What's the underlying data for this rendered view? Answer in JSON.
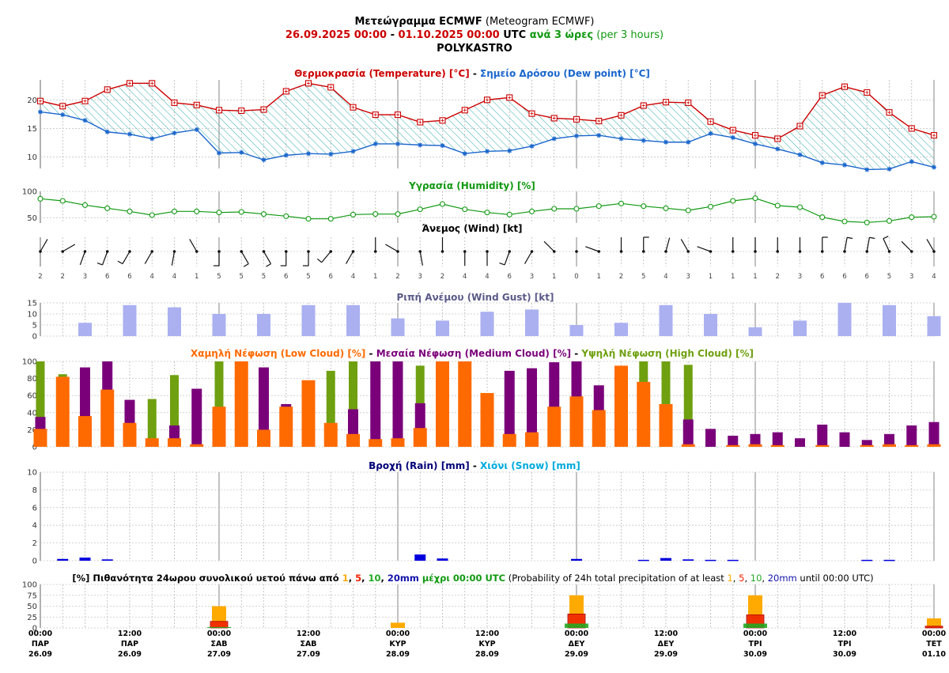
{
  "header": {
    "line1_main": "Μετεώγραμμα ECMWF",
    "line1_sub": " (Meteogram ECMWF)",
    "range_from": "26.09.2025 00:00",
    "range_dash": " - ",
    "range_to": "01.10.2025 00:00",
    "range_utc": " UTC ",
    "range_step": "ανά 3 ώρες",
    "range_step_en": " (per 3 hours)",
    "location": "POLYKASTRO"
  },
  "panel_titles": {
    "temp_a": "Θερμοκρασία (Temperature) [°C]",
    "temp_sep": " - ",
    "temp_b": "Σημείο Δρόσου (Dew point) [°C]",
    "humidity": "Υγρασία (Humidity) [%]",
    "wind": "Άνεμος (Wind) [kt]",
    "gust": "Ριπή Ανέμου (Wind Gust) [kt]",
    "cloud_low": "Χαμηλή Νέφωση (Low Cloud) [%]",
    "cloud_mid": "Μεσαία Νέφωση (Medium Cloud) [%]",
    "cloud_high": "Υψηλή Νέφωση (High Cloud) [%]",
    "cloud_sep": " - ",
    "rain": "Βροχή (Rain) [mm]",
    "rain_sep": " - ",
    "snow": "Χιόνι (Snow) [mm]",
    "prob_a": "[%] Πιθανότητα 24ωρου συνολικού υετού πάνω από ",
    "prob_1": "1",
    "prob_c1": ", ",
    "prob_5": "5",
    "prob_c2": ", ",
    "prob_10": "10",
    "prob_c3": ", ",
    "prob_20": "20mm",
    "prob_b": " μέχρι 00:00 UTC",
    "prob_en_a": " (Probability of 24h total precipitation of at least ",
    "prob_en_1": "1",
    "prob_en_c1": ", ",
    "prob_en_5": "5",
    "prob_en_c2": ", ",
    "prob_en_10": "10",
    "prob_en_c3": ", ",
    "prob_en_20": "20mm",
    "prob_en_b": " until 00:00 UTC)"
  },
  "colors": {
    "temperature": "#cc0000",
    "dew_point": "#1a66cc",
    "hatch": "#33aaaa",
    "humidity": "#119911",
    "gust": "#aab0f0",
    "low_cloud": "#ff6a00",
    "mid_cloud": "#7a007a",
    "high_cloud": "#6fa010",
    "rain": "#0000dd",
    "snow": "#00aadd",
    "prob_1": "#ffaa00",
    "prob_5": "#ee2200",
    "prob_10": "#22aa22",
    "prob_20": "#1111aa",
    "red_text": "#cc0000",
    "green_text": "#119911"
  },
  "x_axis": {
    "labels": [
      {
        "time": "00:00",
        "day": "ΠΑΡ",
        "date": "26.09"
      },
      {
        "time": "12:00",
        "day": "ΠΑΡ",
        "date": "26.09"
      },
      {
        "time": "00:00",
        "day": "ΣΑΒ",
        "date": "27.09"
      },
      {
        "time": "12:00",
        "day": "ΣΑΒ",
        "date": "27.09"
      },
      {
        "time": "00:00",
        "day": "ΚΥΡ",
        "date": "28.09"
      },
      {
        "time": "12:00",
        "day": "ΚΥΡ",
        "date": "28.09"
      },
      {
        "time": "00:00",
        "day": "ΔΕΥ",
        "date": "29.09"
      },
      {
        "time": "12:00",
        "day": "ΔΕΥ",
        "date": "29.09"
      },
      {
        "time": "00:00",
        "day": "ΤΡΙ",
        "date": "30.09"
      },
      {
        "time": "12:00",
        "day": "ΤΡΙ",
        "date": "30.09"
      },
      {
        "time": "00:00",
        "day": "ΤΕΤ",
        "date": "01.10"
      }
    ]
  },
  "chart_data": [
    {
      "type": "line",
      "title": "Θερμοκρασία (Temperature) [°C] - Σημείο Δρόσου (Dew point) [°C]",
      "ylim": [
        8,
        23.5
      ],
      "yticks": [
        10,
        15,
        20
      ],
      "series": [
        {
          "name": "Temperature",
          "values": [
            19.8,
            18.9,
            19.8,
            21.8,
            22.9,
            22.9,
            19.5,
            19.1,
            18.2,
            18.1,
            18.3,
            21.5,
            22.9,
            22.2,
            18.7,
            17.4,
            17.4,
            16.1,
            16.4,
            18.2,
            20.0,
            20.4,
            17.6,
            16.8,
            16.6,
            16.3,
            17.3,
            19.0,
            19.6,
            19.5,
            16.2,
            14.7,
            13.8,
            13.2,
            15.4,
            20.8,
            22.3,
            21.3,
            17.8,
            15.0,
            13.8
          ]
        },
        {
          "name": "Dew point",
          "values": [
            17.9,
            17.4,
            16.4,
            14.4,
            14.0,
            13.2,
            14.2,
            14.8,
            10.7,
            10.8,
            9.5,
            10.3,
            10.6,
            10.5,
            11.0,
            12.3,
            12.3,
            12.1,
            12.0,
            10.6,
            11.0,
            11.1,
            11.9,
            13.2,
            13.7,
            13.8,
            13.2,
            12.9,
            12.6,
            12.6,
            14.1,
            13.4,
            12.3,
            11.4,
            10.4,
            9.0,
            8.6,
            7.8,
            7.9,
            9.2,
            8.2
          ]
        }
      ]
    },
    {
      "type": "line",
      "title": "Υγρασία (Humidity) [%]",
      "ylim": [
        40,
        100
      ],
      "yticks": [
        50,
        100
      ],
      "series": [
        {
          "name": "Humidity",
          "values": [
            86,
            82,
            74,
            68,
            62,
            55,
            62,
            62,
            60,
            61,
            57,
            53,
            48,
            48,
            56,
            57,
            57,
            66,
            76,
            66,
            60,
            56,
            62,
            67,
            67,
            72,
            77,
            72,
            68,
            64,
            71,
            82,
            87,
            73,
            70,
            51,
            43,
            41,
            44,
            51,
            52
          ]
        }
      ]
    },
    {
      "type": "wind",
      "title": "Άνεμος (Wind) [kt]",
      "speed": [
        2,
        2,
        3,
        6,
        6,
        4,
        4,
        1,
        5,
        5,
        5,
        6,
        5,
        6,
        4,
        1,
        2,
        3,
        2,
        4,
        4,
        6,
        3,
        1,
        0,
        1,
        2,
        5,
        4,
        3,
        1,
        1,
        1,
        2,
        3,
        6,
        6,
        6,
        5,
        3,
        4
      ],
      "direction_deg": [
        30,
        60,
        200,
        200,
        210,
        210,
        190,
        330,
        180,
        150,
        150,
        180,
        180,
        220,
        210,
        0,
        300,
        170,
        0,
        180,
        180,
        200,
        210,
        315,
        0,
        290,
        0,
        0,
        15,
        330,
        290,
        0,
        0,
        0,
        0,
        0,
        10,
        10,
        335,
        315,
        330
      ]
    },
    {
      "type": "bar",
      "title": "Ριπή Ανέμου (Wind Gust) [kt]",
      "ylim": [
        0,
        15
      ],
      "yticks": [
        0,
        5,
        10,
        15
      ],
      "values": [
        null,
        null,
        6,
        null,
        14,
        null,
        13,
        null,
        10,
        null,
        10,
        null,
        14,
        null,
        14,
        null,
        8,
        null,
        7,
        null,
        11,
        null,
        12,
        null,
        5,
        null,
        6,
        null,
        14,
        null,
        10,
        null,
        4,
        null,
        7,
        null,
        15,
        null,
        14,
        null,
        9
      ]
    },
    {
      "type": "bar",
      "title": "Χαμηλή Νέφωση (Low Cloud) [%] - Μεσαία Νέφωση (Medium Cloud) [%] - Υψηλή Νέφωση (High Cloud) [%]",
      "ylim": [
        0,
        100
      ],
      "yticks": [
        0,
        20,
        40,
        60,
        80,
        100
      ],
      "series": [
        {
          "name": "Χαμηλή Νέφωση (Low Cloud) [%]",
          "values": [
            21,
            82,
            36,
            67,
            28,
            10,
            10,
            3,
            47,
            100,
            20,
            47,
            78,
            28,
            15,
            9,
            10,
            22,
            100,
            100,
            63,
            15,
            17,
            47,
            59,
            43,
            95,
            76,
            50,
            3,
            0,
            2,
            3,
            2,
            0,
            2,
            0,
            2,
            3,
            2,
            3
          ]
        },
        {
          "name": "Μεσαία Νέφωση (Medium Cloud) [%]",
          "values": [
            35,
            0,
            93,
            100,
            55,
            0,
            25,
            68,
            0,
            0,
            93,
            50,
            0,
            0,
            44,
            100,
            100,
            51,
            0,
            0,
            0,
            89,
            92,
            99,
            100,
            72,
            0,
            0,
            0,
            32,
            21,
            13,
            15,
            17,
            10,
            26,
            17,
            8,
            15,
            25,
            29
          ]
        },
        {
          "name": "Υψηλή Νέφωση (High Cloud) [%]",
          "values": [
            100,
            85,
            0,
            0,
            0,
            56,
            84,
            0,
            100,
            0,
            0,
            0,
            0,
            89,
            100,
            0,
            100,
            95,
            0,
            0,
            0,
            0,
            0,
            0,
            0,
            0,
            0,
            100,
            100,
            96,
            0,
            0,
            0,
            0,
            0,
            0,
            0,
            0,
            0,
            0,
            0
          ]
        }
      ]
    },
    {
      "type": "bar",
      "title": "Βροχή (Rain) [mm] - Χιόνι (Snow) [mm]",
      "ylim": [
        0,
        10
      ],
      "yticks": [
        0,
        2,
        4,
        6,
        8,
        10
      ],
      "series": [
        {
          "name": "Βροχή (Rain) [mm]",
          "values": [
            0,
            0.2,
            0.35,
            0.15,
            0,
            0,
            0,
            0,
            0,
            0,
            0,
            0,
            0,
            0,
            0,
            0,
            0,
            0.7,
            0.25,
            0,
            0,
            0,
            0,
            0,
            0.2,
            0,
            0,
            0.1,
            0.3,
            0.15,
            0.1,
            0.1,
            0,
            0,
            0,
            0,
            0,
            0.1,
            0.1,
            0,
            0
          ]
        },
        {
          "name": "Χιόνι (Snow) [mm]",
          "values": [
            0,
            0,
            0,
            0,
            0,
            0,
            0,
            0,
            0,
            0,
            0,
            0,
            0,
            0,
            0,
            0,
            0,
            0,
            0,
            0,
            0,
            0,
            0,
            0,
            0,
            0,
            0,
            0,
            0,
            0,
            0,
            0,
            0,
            0,
            0,
            0,
            0,
            0,
            0,
            0,
            0
          ]
        }
      ]
    },
    {
      "type": "bar",
      "title": "[%] Πιθανότητα 24ωρου συνολικού υετού πάνω από 1, 5, 10, 20mm μέχρι 00:00 UTC",
      "ylim": [
        0,
        100
      ],
      "yticks": [
        0,
        25,
        50,
        75,
        100
      ],
      "categories": [
        "26.09",
        "27.09",
        "28.09",
        "29.09",
        "30.09",
        "01.10"
      ],
      "series": [
        {
          "name": "1",
          "values": [
            0,
            50,
            12,
            75,
            75,
            22
          ]
        },
        {
          "name": "5",
          "values": [
            0,
            15,
            0,
            32,
            30,
            4
          ]
        },
        {
          "name": "10",
          "values": [
            0,
            2,
            0,
            10,
            10,
            0
          ]
        },
        {
          "name": "20mm",
          "values": [
            0,
            0,
            0,
            0,
            0,
            0
          ]
        }
      ]
    }
  ]
}
